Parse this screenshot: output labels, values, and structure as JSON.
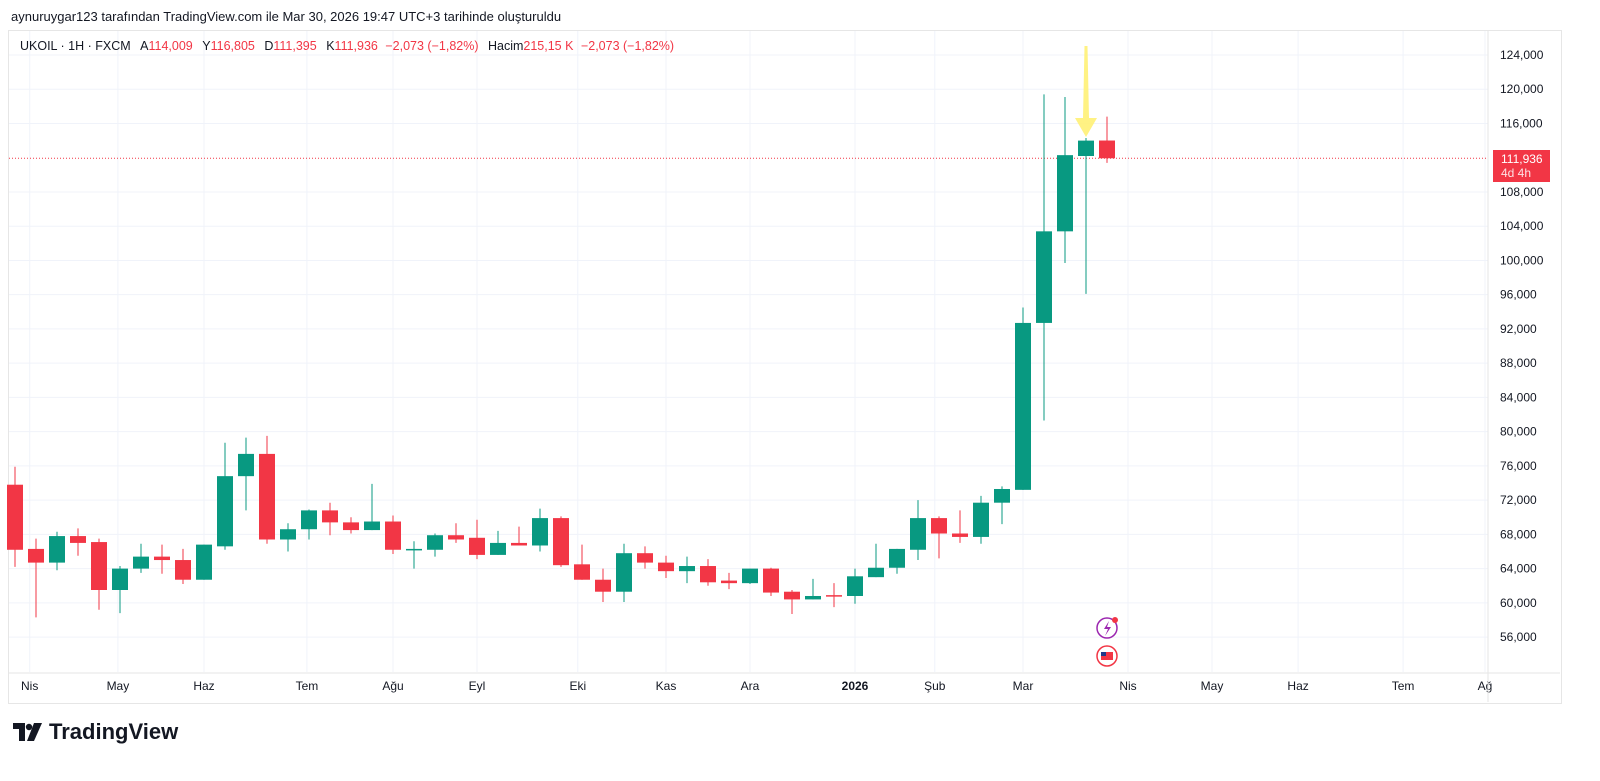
{
  "caption": "aynuruygar123 tarafından TradingView.com ile Mar 30, 2026 19:47 UTC+3 tarihinde oluşturuldu",
  "legend": {
    "symbol": "UKOIL · 1H · FXCM",
    "open_label": "A",
    "open": "114,009",
    "high_label": "Y",
    "high": "116,805",
    "low_label": "D",
    "low": "111,395",
    "close_label": "K",
    "close": "111,936",
    "change": "−2,073 (−1,82%)",
    "volume_label": "Hacim",
    "volume": "215,15 K",
    "volume_change": "−2,073 (−1,82%)"
  },
  "price_tag": {
    "price": "111,936",
    "countdown": "4d 4h"
  },
  "logo_text": "TradingView",
  "colors": {
    "up": "#089981",
    "down": "#f23645",
    "arrow": "#fff176",
    "grid": "#f0f3fa"
  },
  "chart_data": {
    "type": "candlestick",
    "symbol": "UKOIL",
    "ylim": [
      52000,
      126000
    ],
    "y_ticks": [
      56000,
      60000,
      64000,
      68000,
      72000,
      76000,
      80000,
      84000,
      88000,
      92000,
      96000,
      100000,
      104000,
      108000,
      116000,
      120000,
      124000
    ],
    "y_tick_labels": [
      "56,000",
      "60,000",
      "64,000",
      "68,000",
      "72,000",
      "76,000",
      "80,000",
      "84,000",
      "88,000",
      "92,000",
      "96,000",
      "100,000",
      "104,000",
      "108,000",
      "116,000",
      "120,000",
      "124,000"
    ],
    "x_ticks": [
      {
        "label": "Nis",
        "idx": 0.7
      },
      {
        "label": "May",
        "idx": 4.9
      },
      {
        "label": "Haz",
        "idx": 9.0
      },
      {
        "label": "Tem",
        "idx": 13.9
      },
      {
        "label": "Ağu",
        "idx": 18.0
      },
      {
        "label": "Eyl",
        "idx": 22.0
      },
      {
        "label": "Eki",
        "idx": 26.8
      },
      {
        "label": "Kas",
        "idx": 31.0
      },
      {
        "label": "Ara",
        "idx": 35.0
      },
      {
        "label": "2026",
        "idx": 40.0,
        "bold": true
      },
      {
        "label": "Şub",
        "idx": 43.8
      },
      {
        "label": "Mar",
        "idx": 48.0
      },
      {
        "label": "Nis",
        "idx": 53.0
      },
      {
        "label": "May",
        "idx": 57.0
      },
      {
        "label": "Haz",
        "idx": 61.1
      },
      {
        "label": "Tem",
        "idx": 66.1
      },
      {
        "label": "Ağ",
        "idx": 70.0
      }
    ],
    "last_price": 111936,
    "arrow_on_index": 51,
    "candles": [
      [
        73800,
        75900,
        64200,
        66200
      ],
      [
        66300,
        67500,
        58300,
        64700
      ],
      [
        64700,
        68300,
        63800,
        67800
      ],
      [
        67800,
        68700,
        65500,
        67000
      ],
      [
        67100,
        67500,
        59200,
        61500
      ],
      [
        61500,
        64300,
        58800,
        64000
      ],
      [
        64000,
        66900,
        63500,
        65400
      ],
      [
        65400,
        66800,
        63400,
        65000
      ],
      [
        65000,
        66300,
        62200,
        62700
      ],
      [
        62700,
        66800,
        62700,
        66800
      ],
      [
        66600,
        78700,
        66200,
        74800
      ],
      [
        74800,
        79300,
        70800,
        77400
      ],
      [
        77400,
        79500,
        66900,
        67400
      ],
      [
        67400,
        69300,
        66000,
        68600
      ],
      [
        68600,
        70900,
        67400,
        70800
      ],
      [
        70800,
        71700,
        67900,
        69400
      ],
      [
        69400,
        70000,
        68100,
        68500
      ],
      [
        68500,
        73900,
        68500,
        69500
      ],
      [
        69500,
        70200,
        65700,
        66200
      ],
      [
        66200,
        67200,
        64000,
        66300
      ],
      [
        66200,
        68100,
        65400,
        67900
      ],
      [
        67900,
        69300,
        67000,
        67400
      ],
      [
        67600,
        69700,
        65100,
        65600
      ],
      [
        65600,
        68400,
        65600,
        67000
      ],
      [
        67000,
        68900,
        66700,
        66700
      ],
      [
        66700,
        71000,
        66000,
        69900
      ],
      [
        69900,
        70100,
        64200,
        64400
      ],
      [
        64500,
        66800,
        62700,
        62700
      ],
      [
        62700,
        64000,
        60100,
        61300
      ],
      [
        61300,
        66900,
        60100,
        65800
      ],
      [
        65800,
        66600,
        64000,
        64700
      ],
      [
        64700,
        65500,
        62900,
        63700
      ],
      [
        63700,
        65400,
        62300,
        64300
      ],
      [
        64300,
        65100,
        62000,
        62400
      ],
      [
        62600,
        63500,
        61600,
        62300
      ],
      [
        62300,
        64000,
        62200,
        64000
      ],
      [
        64000,
        64100,
        60800,
        61200
      ],
      [
        61300,
        61500,
        58700,
        60400
      ],
      [
        60400,
        62800,
        60400,
        60800
      ],
      [
        60900,
        62300,
        59500,
        60800
      ],
      [
        60800,
        64000,
        59900,
        63100
      ],
      [
        63000,
        66900,
        63000,
        64100
      ],
      [
        64100,
        66300,
        63400,
        66300
      ],
      [
        66200,
        72000,
        65000,
        69900
      ],
      [
        69900,
        70100,
        65200,
        68100
      ],
      [
        68100,
        70800,
        67000,
        67700
      ],
      [
        67700,
        72500,
        66900,
        71700
      ],
      [
        71700,
        73600,
        69200,
        73300
      ],
      [
        73200,
        94500,
        73200,
        92700
      ],
      [
        92700,
        119400,
        81300,
        103400
      ],
      [
        103400,
        119100,
        99700,
        112300
      ],
      [
        112200,
        114300,
        96100,
        114000
      ],
      [
        114009,
        116805,
        111395,
        111936
      ]
    ]
  }
}
